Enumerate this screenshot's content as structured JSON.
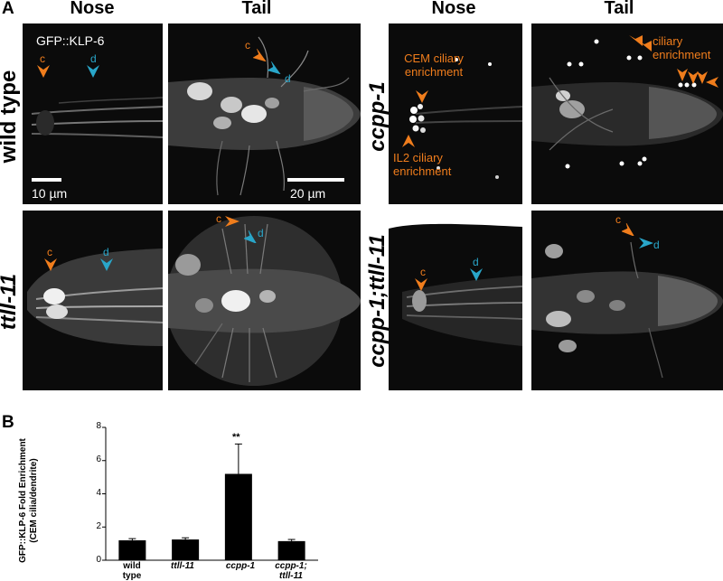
{
  "panel_a": {
    "letter": "A",
    "col_headers": [
      "Nose",
      "Tail",
      "Nose",
      "Tail"
    ],
    "row_labels": [
      "wild type",
      "ttll-11",
      "ccpp-1",
      "ccpp-1;ttll-11"
    ],
    "marker_label": "GFP::KLP-6",
    "scale_bar_nose": "10 µm",
    "scale_bar_tail": "20 µm",
    "arrow_c": "c",
    "arrow_d": "d",
    "cem_label": "CEM ciliary enrichment",
    "il2_label": "IL2 ciliary enrichment",
    "ciliary_label": "ciliary enrichment",
    "colors": {
      "orange": "#f07d1c",
      "cyan": "#29a6c9"
    }
  },
  "panel_b": {
    "letter": "B",
    "ylabel_line1": "GFP::KLP-6 Fold Enrichment",
    "ylabel_line2": "(CEM cilia/dendrite)",
    "significance": "**",
    "yticks": [
      "0",
      "2",
      "4",
      "6",
      "8"
    ],
    "categories": [
      {
        "line1": "wild",
        "line2": "type"
      },
      {
        "line1": "ttll-11",
        "line2": ""
      },
      {
        "line1": "ccpp-1",
        "line2": ""
      },
      {
        "line1": "ccpp-1;",
        "line2": "ttll-11"
      }
    ]
  },
  "chart_data": {
    "type": "bar",
    "categories": [
      "wild type",
      "ttll-11",
      "ccpp-1",
      "ccpp-1; ttll-11"
    ],
    "values": [
      1.2,
      1.25,
      5.2,
      1.15
    ],
    "errors": [
      0.1,
      0.1,
      1.8,
      0.1
    ],
    "title": "",
    "xlabel": "",
    "ylabel": "GFP::KLP-6 Fold Enrichment (CEM cilia/dendrite)",
    "ylim": [
      0,
      8
    ],
    "yticks": [
      0,
      2,
      4,
      6,
      8
    ],
    "annotations": [
      "**"
    ],
    "bar_color": "#000000"
  }
}
